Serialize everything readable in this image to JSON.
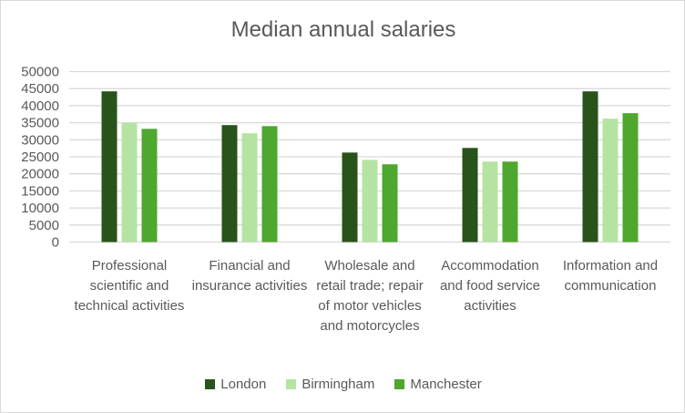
{
  "chart_data": {
    "type": "bar",
    "title": "Median annual salaries",
    "xlabel": "",
    "ylabel": "",
    "ylim": [
      0,
      50000
    ],
    "yticks": [
      "0",
      "5000",
      "10000",
      "15000",
      "20000",
      "25000",
      "30000",
      "35000",
      "40000",
      "45000",
      "50000"
    ],
    "grid": true,
    "legend_position": "bottom",
    "categories": [
      "Professional scientific and technical activities",
      "Financial and insurance activities",
      "Wholesale and retail trade; repair of motor vehicles and motorcycles",
      "Accommodation and food service activities",
      "Information and communication"
    ],
    "series": [
      {
        "name": "London",
        "color": "#28531a",
        "values": [
          44200,
          34300,
          26250,
          27600,
          44200
        ]
      },
      {
        "name": "Birmingham",
        "color": "#b5e4a2",
        "values": [
          34900,
          31900,
          24100,
          23600,
          36200
        ]
      },
      {
        "name": "Manchester",
        "color": "#4ea72e",
        "values": [
          33200,
          34000,
          22800,
          23600,
          37800
        ]
      }
    ]
  }
}
